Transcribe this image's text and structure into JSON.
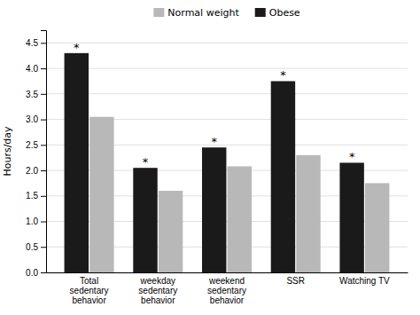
{
  "chart_data": {
    "type": "bar",
    "categories": [
      "Total\nsedentary\nbehavior",
      "weekday\nsedentary\nbehavior",
      "weekend\nsedentary\nbehavior",
      "SSR",
      "Watching TV"
    ],
    "series": [
      {
        "name": "Obese",
        "color": "#1a1a1a",
        "values": [
          4.3,
          2.05,
          2.45,
          3.75,
          2.15
        ]
      },
      {
        "name": "Normal weight",
        "color": "#b8b8b8",
        "values": [
          3.05,
          1.6,
          2.08,
          2.3,
          1.75
        ]
      }
    ],
    "y_label": "Hours/day",
    "ylim": [
      0,
      4.75
    ],
    "yticks": [
      {
        "value": 0,
        "label": "0.0"
      },
      0.5,
      {
        "value": 1.0,
        "label": "1.0"
      },
      1.5,
      {
        "value": 2.0,
        "label": "2.0"
      },
      2.5,
      {
        "value": 3.0,
        "label": "3.0"
      },
      3.5,
      {
        "value": 4.0,
        "label": "4.0"
      },
      4.5
    ],
    "grid": true,
    "legend": "top",
    "annotations": [
      {
        "text": "*",
        "series": "Obese",
        "category": "Total\nsedentary\nbehavior"
      },
      {
        "text": "*",
        "series": "Obese",
        "category": "weekday\nsedentary\nbehavior"
      },
      {
        "text": "*",
        "series": "Obese",
        "category": "weekend\nsedentary\nbehavior"
      },
      {
        "text": "*",
        "series": "Obese",
        "category": "SSR"
      },
      {
        "text": "*",
        "series": "Obese",
        "category": "Watching TV"
      }
    ]
  }
}
